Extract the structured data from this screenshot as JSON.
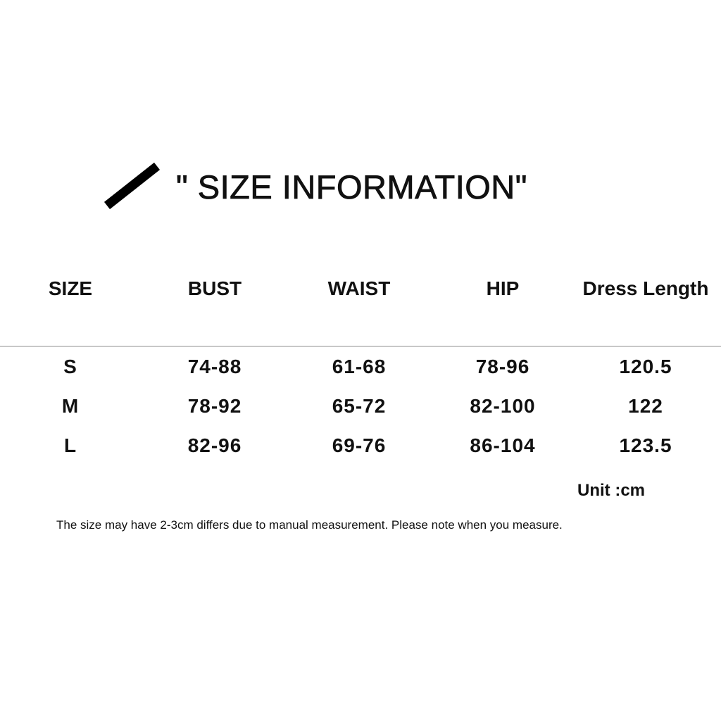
{
  "title": "\" SIZE INFORMATION\"",
  "table": {
    "headers": [
      "SIZE",
      "BUST",
      "WAIST",
      "HIP",
      "Dress  Length"
    ],
    "rows": [
      [
        "S",
        "74-88",
        "61-68",
        "78-96",
        "120.5"
      ],
      [
        "M",
        "78-92",
        "65-72",
        "82-100",
        "122"
      ],
      [
        "L",
        "82-96",
        "69-76",
        "86-104",
        "123.5"
      ]
    ]
  },
  "unit": "Unit :cm",
  "note": "The size may have 2-3cm differs due to manual measurement. Please note when you measure."
}
